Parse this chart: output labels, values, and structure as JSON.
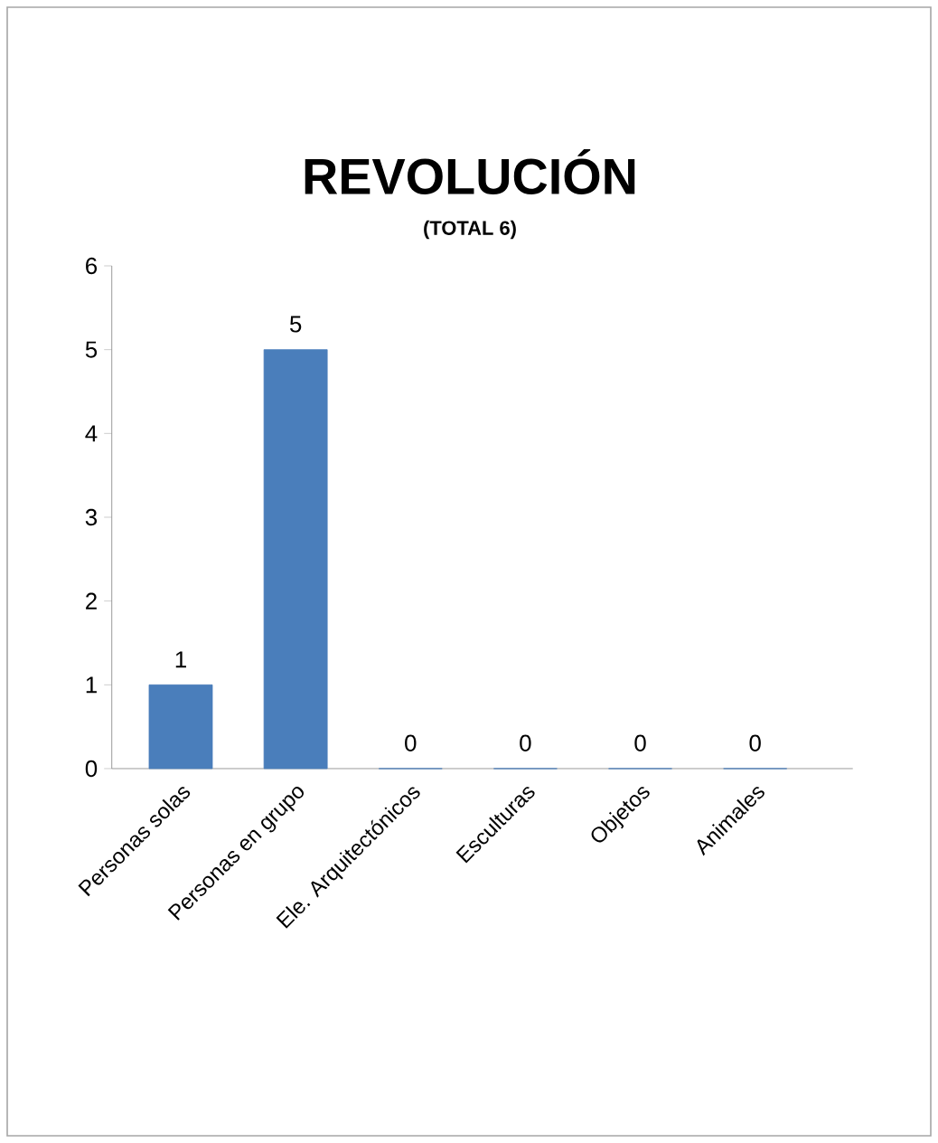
{
  "chart_data": {
    "type": "bar",
    "title": "REVOLUCIÓN",
    "subtitle": "(TOTAL 6)",
    "categories": [
      "Personas solas",
      "Personas en grupo",
      "Ele. Arquitectónicos",
      "Esculturas",
      "Objetos",
      "Animales"
    ],
    "values": [
      1,
      5,
      0,
      0,
      0,
      0
    ],
    "color": "#4a7ebb",
    "ylim": [
      0,
      6
    ],
    "yticks": [
      0,
      1,
      2,
      3,
      4,
      5,
      6
    ],
    "data_labels": true
  }
}
